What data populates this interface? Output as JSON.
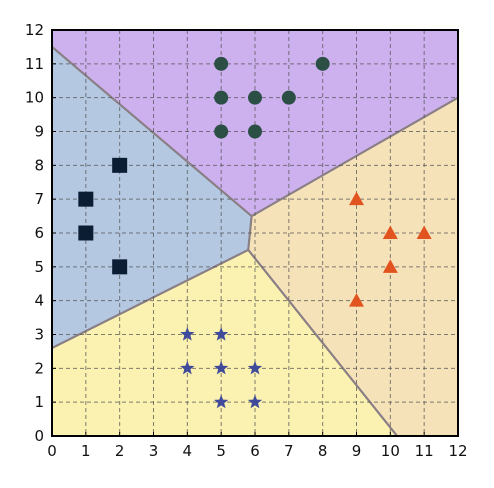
{
  "chart_data": {
    "type": "scatter",
    "title": "",
    "xlabel": "",
    "ylabel": "",
    "xlim": [
      0,
      12
    ],
    "ylim": [
      0,
      12
    ],
    "grid": true,
    "x_ticks": [
      "0",
      "1",
      "2",
      "3",
      "4",
      "5",
      "6",
      "7",
      "8",
      "9",
      "10",
      "11",
      "12"
    ],
    "y_ticks": [
      "0",
      "1",
      "2",
      "3",
      "4",
      "5",
      "6",
      "7",
      "8",
      "9",
      "10",
      "11",
      "12"
    ],
    "regions": [
      {
        "class": "square",
        "color": "#b4c8e2",
        "polygon": [
          [
            0,
            11.5
          ],
          [
            5.9,
            6.5
          ],
          [
            5.8,
            5.5
          ],
          [
            0,
            2.6
          ]
        ]
      },
      {
        "class": "circle",
        "color": "#cdb0ee",
        "polygon": [
          [
            0,
            12
          ],
          [
            12,
            12
          ],
          [
            12,
            10
          ],
          [
            5.9,
            6.5
          ],
          [
            0,
            11.5
          ]
        ]
      },
      {
        "class": "triangle",
        "color": "#f6e2b8",
        "polygon": [
          [
            5.9,
            6.5
          ],
          [
            12,
            10
          ],
          [
            12,
            0
          ],
          [
            10.2,
            0
          ],
          [
            5.8,
            5.5
          ]
        ]
      },
      {
        "class": "star",
        "color": "#fbf1b0",
        "polygon": [
          [
            0,
            0
          ],
          [
            10.2,
            0
          ],
          [
            5.8,
            5.5
          ],
          [
            0,
            2.6
          ]
        ]
      }
    ],
    "series": [
      {
        "marker": "square",
        "color": "#0b1d33",
        "points": [
          [
            1,
            7
          ],
          [
            1,
            6
          ],
          [
            2,
            8
          ],
          [
            2,
            5
          ]
        ]
      },
      {
        "marker": "circle",
        "color": "#2b4f45",
        "points": [
          [
            5,
            11
          ],
          [
            8,
            11
          ],
          [
            5,
            10
          ],
          [
            6,
            10
          ],
          [
            7,
            10
          ],
          [
            5,
            9
          ],
          [
            6,
            9
          ]
        ]
      },
      {
        "marker": "triangle",
        "color": "#e2541f",
        "points": [
          [
            9,
            7
          ],
          [
            10,
            6
          ],
          [
            11,
            6
          ],
          [
            10,
            5
          ],
          [
            9,
            4
          ]
        ]
      },
      {
        "marker": "star",
        "color": "#3f4a9a",
        "points": [
          [
            4,
            3
          ],
          [
            5,
            3
          ],
          [
            4,
            2
          ],
          [
            5,
            2
          ],
          [
            6,
            2
          ],
          [
            5,
            1
          ],
          [
            6,
            1
          ]
        ]
      }
    ]
  }
}
